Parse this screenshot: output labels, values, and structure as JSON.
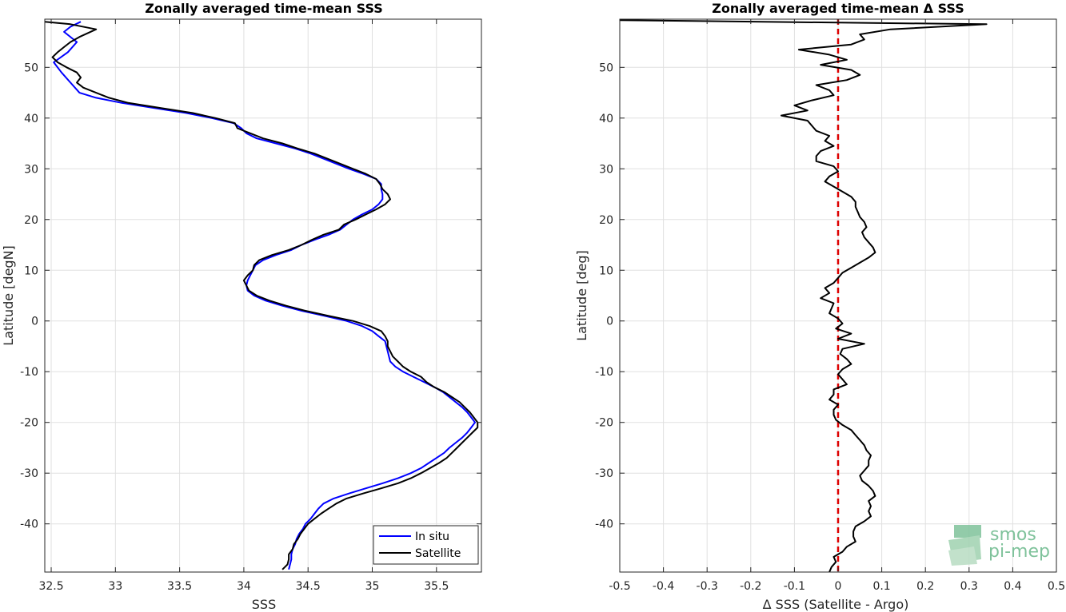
{
  "chart_data": [
    {
      "type": "line",
      "title": "Zonally averaged time-mean SSS",
      "xlabel": "SSS",
      "ylabel": "Latitude [degN]",
      "xlim": [
        32.45,
        35.85
      ],
      "ylim": [
        -49.5,
        59.5
      ],
      "xticks": [
        32.5,
        33,
        33.5,
        34,
        34.5,
        35,
        35.5
      ],
      "xtick_labels": [
        "32.5",
        "33",
        "33.5",
        "34",
        "34.5",
        "35",
        "35.5"
      ],
      "yticks": [
        -40,
        -30,
        -20,
        -10,
        0,
        10,
        20,
        30,
        40,
        50
      ],
      "ytick_labels": [
        "-40",
        "-30",
        "-20",
        "-10",
        "0",
        "10",
        "20",
        "30",
        "40",
        "50"
      ],
      "grid": true,
      "legend_position": "bottom-right",
      "series": [
        {
          "name": "In situ",
          "color": "#0000ff",
          "lat": [
            59,
            58,
            57,
            55,
            53,
            51,
            49,
            47,
            45,
            44,
            43,
            42,
            41,
            40,
            39,
            38,
            37,
            36,
            35,
            34,
            33,
            32,
            31,
            30,
            29,
            28,
            27,
            26,
            25,
            24,
            23,
            22,
            21,
            20,
            19,
            18,
            17,
            16,
            15,
            14,
            13,
            12,
            11,
            10,
            9,
            8,
            7,
            6,
            5,
            4,
            3,
            2,
            1,
            0,
            -1,
            -2,
            -3,
            -4,
            -5,
            -6,
            -7,
            -8,
            -9,
            -10,
            -11,
            -12,
            -13,
            -14,
            -15,
            -16,
            -17,
            -18,
            -19,
            -20,
            -21,
            -22,
            -23,
            -24,
            -25,
            -26,
            -27,
            -28,
            -29,
            -30,
            -31,
            -32,
            -33,
            -34,
            -35,
            -36,
            -37,
            -38,
            -39,
            -40,
            -41,
            -42,
            -43,
            -44,
            -45,
            -46,
            -47,
            -48,
            -49
          ],
          "sss": [
            32.73,
            32.65,
            32.6,
            32.7,
            32.63,
            32.52,
            32.58,
            32.65,
            32.72,
            32.85,
            33.05,
            33.3,
            33.55,
            33.75,
            33.92,
            33.98,
            34.02,
            34.1,
            34.25,
            34.4,
            34.52,
            34.62,
            34.72,
            34.82,
            34.93,
            35.03,
            35.07,
            35.07,
            35.08,
            35.08,
            35.05,
            35.0,
            34.92,
            34.85,
            34.8,
            34.75,
            34.66,
            34.55,
            34.45,
            34.37,
            34.25,
            34.15,
            34.09,
            34.07,
            34.05,
            34.03,
            34.02,
            34.03,
            34.08,
            34.17,
            34.3,
            34.45,
            34.63,
            34.8,
            34.92,
            35.0,
            35.05,
            35.1,
            35.11,
            35.12,
            35.13,
            35.14,
            35.18,
            35.24,
            35.32,
            35.4,
            35.48,
            35.55,
            35.6,
            35.65,
            35.7,
            35.74,
            35.77,
            35.8,
            35.77,
            35.74,
            35.7,
            35.65,
            35.6,
            35.56,
            35.5,
            35.44,
            35.38,
            35.3,
            35.2,
            35.08,
            34.95,
            34.82,
            34.7,
            34.62,
            34.58,
            34.55,
            34.52,
            34.48,
            34.46,
            34.43,
            34.41,
            34.4,
            34.38,
            34.37,
            34.37,
            34.36,
            34.35
          ]
        },
        {
          "name": "Satellite",
          "color": "#000000",
          "lat": [
            59,
            58.5,
            57.5,
            56,
            55,
            54,
            53,
            52,
            51,
            50,
            49,
            48,
            47,
            46,
            45,
            44,
            43,
            42,
            41,
            40,
            39,
            38,
            37,
            36,
            35,
            34,
            33,
            32,
            31,
            30,
            29,
            28,
            27,
            26,
            25,
            24,
            23,
            22,
            21,
            20,
            19,
            18,
            17,
            16,
            15,
            14,
            13,
            12,
            11,
            10,
            9,
            8,
            7,
            6,
            5,
            4,
            3,
            2,
            1,
            0,
            -1,
            -2,
            -3,
            -4,
            -5,
            -6,
            -7,
            -8,
            -9,
            -10,
            -11,
            -12,
            -13,
            -14,
            -15,
            -16,
            -17,
            -18,
            -19,
            -20,
            -21,
            -22,
            -23,
            -24,
            -25,
            -26,
            -27,
            -28,
            -29,
            -30,
            -31,
            -32,
            -33,
            -34,
            -35,
            -36,
            -37,
            -38,
            -39,
            -40,
            -41,
            -42,
            -43,
            -44,
            -45,
            -46,
            -47,
            -48,
            -49
          ],
          "sss": [
            32.45,
            32.65,
            32.85,
            32.72,
            32.65,
            32.6,
            32.55,
            32.51,
            32.55,
            32.62,
            32.7,
            32.73,
            32.7,
            32.75,
            32.85,
            32.95,
            33.1,
            33.35,
            33.6,
            33.78,
            33.93,
            33.95,
            34.05,
            34.15,
            34.3,
            34.42,
            34.55,
            34.65,
            34.75,
            34.85,
            34.95,
            35.03,
            35.06,
            35.08,
            35.12,
            35.14,
            35.1,
            35.03,
            34.95,
            34.87,
            34.78,
            34.74,
            34.62,
            34.53,
            34.45,
            34.35,
            34.22,
            34.12,
            34.08,
            34.07,
            34.03,
            34.0,
            34.02,
            34.04,
            34.1,
            34.2,
            34.33,
            34.48,
            34.66,
            34.85,
            34.98,
            35.07,
            35.1,
            35.12,
            35.12,
            35.14,
            35.16,
            35.2,
            35.24,
            35.3,
            35.38,
            35.42,
            35.48,
            35.56,
            35.62,
            35.68,
            35.72,
            35.76,
            35.79,
            35.82,
            35.82,
            35.78,
            35.74,
            35.7,
            35.66,
            35.62,
            35.58,
            35.52,
            35.45,
            35.38,
            35.3,
            35.2,
            35.07,
            34.93,
            34.8,
            34.72,
            34.66,
            34.6,
            34.55,
            34.5,
            34.47,
            34.44,
            34.42,
            34.39,
            34.38,
            34.35,
            34.35,
            34.34,
            34.3
          ]
        }
      ]
    },
    {
      "type": "line",
      "title": "Zonally averaged time-mean Δ SSS",
      "xlabel": "Δ SSS (Satellite - Argo)",
      "ylabel": "Latitude [deg]",
      "xlim": [
        -0.5,
        0.5
      ],
      "ylim": [
        -49.5,
        59.5
      ],
      "xticks": [
        -0.5,
        -0.4,
        -0.3,
        -0.2,
        -0.1,
        0,
        0.1,
        0.2,
        0.3,
        0.4,
        0.5
      ],
      "xtick_labels": [
        "-0.5",
        "-0.4",
        "-0.3",
        "-0.2",
        "-0.1",
        "0",
        "0.1",
        "0.2",
        "0.3",
        "0.4",
        "0.5"
      ],
      "yticks": [
        -40,
        -30,
        -20,
        -10,
        0,
        10,
        20,
        30,
        40,
        50
      ],
      "ytick_labels": [
        "-40",
        "-30",
        "-20",
        "-10",
        "0",
        "10",
        "20",
        "30",
        "40",
        "50"
      ],
      "grid": true,
      "reference_line": {
        "x": 0,
        "color": "#dd0000",
        "style": "dashed"
      },
      "series": [
        {
          "color": "#000000",
          "lat": [
            59.3,
            58.5,
            57.5,
            56.5,
            55.5,
            54.5,
            53.5,
            52.5,
            51.5,
            50.5,
            49.5,
            48.5,
            47.5,
            46.5,
            45.5,
            44.5,
            43.5,
            42.5,
            41.5,
            40.5,
            39.5,
            38.5,
            37.5,
            36.5,
            35.5,
            34.5,
            33.5,
            32.5,
            31.5,
            30.5,
            29.5,
            28.5,
            27.5,
            26.5,
            25.5,
            24.5,
            23.5,
            22.5,
            21.5,
            20.5,
            19.5,
            18.5,
            17.5,
            16.5,
            15.5,
            14.5,
            13.5,
            12.5,
            11.5,
            10.5,
            9.5,
            8.5,
            7.5,
            6.5,
            5.5,
            4.5,
            3.5,
            2.5,
            1.5,
            0.5,
            -0.5,
            -1.5,
            -2.5,
            -3.5,
            -4.5,
            -5.5,
            -6.5,
            -7.5,
            -8.5,
            -9.5,
            -10.5,
            -11.5,
            -12.5,
            -13.5,
            -14.5,
            -15.5,
            -16.5,
            -17.5,
            -18.5,
            -19.5,
            -20.5,
            -21.5,
            -22.5,
            -23.5,
            -24.5,
            -25.5,
            -26.5,
            -27.5,
            -28.5,
            -29.5,
            -30.5,
            -31.5,
            -32.5,
            -33.5,
            -34.5,
            -35.5,
            -36.5,
            -37.5,
            -38.5,
            -39.5,
            -40.5,
            -41.5,
            -42.5,
            -43.5,
            -44.5,
            -45.5,
            -46.5,
            -47.5,
            -48.5,
            -49.5
          ],
          "dsss": [
            -0.5,
            0.34,
            0.12,
            0.05,
            0.06,
            0.03,
            -0.09,
            -0.02,
            0.02,
            -0.04,
            0.03,
            0.05,
            0.02,
            -0.05,
            -0.02,
            -0.01,
            -0.06,
            -0.1,
            -0.07,
            -0.13,
            -0.07,
            -0.06,
            -0.05,
            -0.02,
            -0.03,
            -0.01,
            -0.04,
            -0.05,
            -0.05,
            -0.01,
            0.0,
            -0.02,
            -0.03,
            -0.01,
            0.01,
            0.03,
            0.04,
            0.04,
            0.045,
            0.05,
            0.06,
            0.065,
            0.055,
            0.06,
            0.07,
            0.08,
            0.085,
            0.07,
            0.05,
            0.03,
            0.01,
            0.0,
            -0.01,
            -0.03,
            -0.02,
            -0.04,
            -0.01,
            -0.015,
            -0.02,
            0.0,
            0.01,
            -0.005,
            0.03,
            0.0,
            0.06,
            0.01,
            0.005,
            0.02,
            0.03,
            0.01,
            0.0,
            0.01,
            0.02,
            -0.01,
            -0.01,
            -0.02,
            0.0,
            -0.01,
            -0.01,
            -0.005,
            0.01,
            0.03,
            0.04,
            0.05,
            0.06,
            0.065,
            0.075,
            0.07,
            0.07,
            0.06,
            0.05,
            0.055,
            0.07,
            0.08,
            0.085,
            0.07,
            0.075,
            0.07,
            0.075,
            0.06,
            0.04,
            0.035,
            0.035,
            0.04,
            0.02,
            0.01,
            -0.01,
            -0.005,
            -0.015,
            -0.02
          ]
        }
      ]
    }
  ],
  "logo": {
    "line1": "smos",
    "line2": "pi-mep"
  },
  "colors": {
    "axis": "#262626",
    "grid": "#e0e0e0",
    "in_situ": "#0000ff",
    "satellite": "#000000",
    "zero_line": "#dd0000",
    "logo": "#7fc29b"
  }
}
